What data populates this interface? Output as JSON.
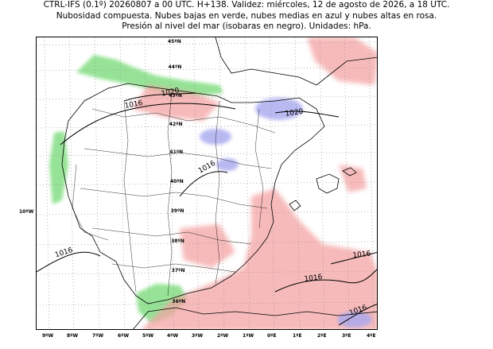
{
  "header": {
    "line1": "CTRL-IFS (0.1º) 20260807 a 00 UTC. H+138. Validez: miércoles, 12 de agosto de 2026, a 18 UTC.",
    "line2": "Nubosidad compuesta. Nubes bajas en verde, nubes medias en azul y nubes altas en rosa.",
    "line3": "Presión al nivel del mar (isobaras en negro). Unidades: hPa."
  },
  "map": {
    "lat_labels": [
      "45ºN",
      "44ºN",
      "43ºN",
      "42ºN",
      "41ºN",
      "40ºN",
      "39ºN",
      "38ºN",
      "37ºN",
      "36ºN"
    ],
    "lon_labels": [
      "9ºW",
      "8ºW",
      "7ºW",
      "6ºW",
      "5ºW",
      "4ºW",
      "3ºW",
      "2ºW",
      "1ºW",
      "0ºE",
      "1ºE",
      "2ºE",
      "3ºE",
      "4ºE"
    ],
    "side_label": "10ºW",
    "isobar_labels": [
      "1020",
      "1016",
      "1020",
      "1016",
      "1016",
      "1016",
      "1016",
      "1016"
    ],
    "colors": {
      "low_clouds": "#7ddc7d",
      "medium_clouds": "#a8a8f0",
      "high_clouds": "#f4a3a3",
      "isobars": "#000000"
    }
  }
}
